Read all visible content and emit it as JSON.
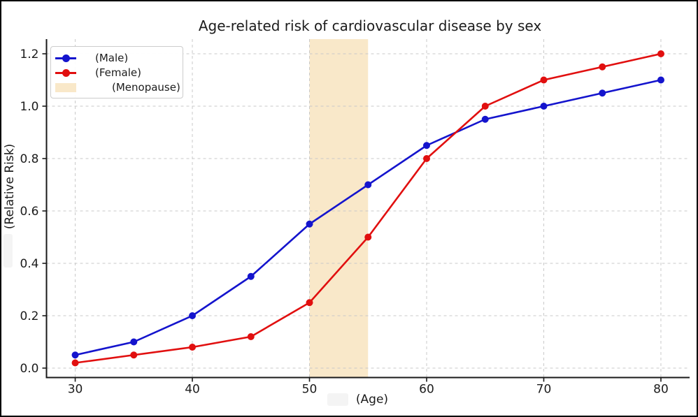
{
  "chart_data": {
    "type": "line",
    "title": "Age-related risk of cardiovascular disease by sex",
    "xlabel": "(Age)",
    "ylabel": "(Relative Risk)",
    "x": [
      30,
      35,
      40,
      45,
      50,
      55,
      60,
      65,
      70,
      75,
      80
    ],
    "series": [
      {
        "name": "(Male)",
        "color": "#1414cd",
        "marker": "circle",
        "values": [
          0.05,
          0.1,
          0.2,
          0.35,
          0.55,
          0.7,
          0.85,
          0.95,
          1.0,
          1.05,
          1.1
        ]
      },
      {
        "name": "(Female)",
        "color": "#e10f0f",
        "marker": "circle",
        "values": [
          0.02,
          0.05,
          0.08,
          0.12,
          0.25,
          0.5,
          0.8,
          1.0,
          1.1,
          1.15,
          1.2
        ]
      }
    ],
    "band": {
      "label": "(Menopause)",
      "x0": 50,
      "x1": 55,
      "color": "#f9e8c9"
    },
    "xticks": [
      30,
      40,
      50,
      60,
      70,
      80
    ],
    "yticks": [
      "0.0",
      "0.2",
      "0.4",
      "0.6",
      "0.8",
      "1.0",
      "1.2"
    ],
    "ytick_values": [
      0,
      0.2,
      0.4,
      0.6,
      0.8,
      1.0,
      1.2
    ],
    "xlim": [
      27.55,
      82.45
    ],
    "ylim": [
      -0.036,
      1.256
    ],
    "grid": true,
    "grid_color": "#c9c9c9",
    "axis_color": "#1a1a1a",
    "tick_label_color": "#1c1c1c",
    "legend_position": "upper-left"
  }
}
